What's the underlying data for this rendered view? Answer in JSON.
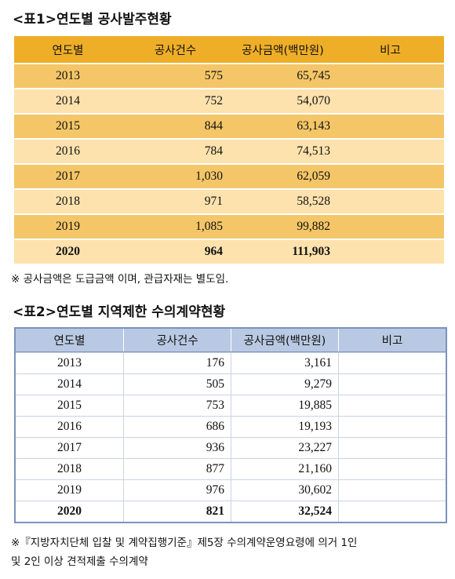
{
  "tables": [
    {
      "title": "<표1>연도별 공사발주현황",
      "header": [
        "연도별",
        "공사건수",
        "공사금액(백만원)",
        "비고"
      ],
      "rows": [
        [
          "2013",
          "575",
          "65,745"
        ],
        [
          "2014",
          "752",
          "54,070"
        ],
        [
          "2015",
          "844",
          "63,143"
        ],
        [
          "2016",
          "784",
          "74,513"
        ],
        [
          "2017",
          "1,030",
          "62,059"
        ],
        [
          "2018",
          "971",
          "58,528"
        ],
        [
          "2019",
          "1,085",
          "99,882"
        ],
        [
          "2020",
          "964",
          "111,903"
        ]
      ],
      "note": [
        "※ 공사금액은 도급금액 이며, 관급자재는 별도임."
      ]
    },
    {
      "title": "<표2>연도별 지역제한 수의계약현황",
      "header": [
        "연도별",
        "공사건수",
        "공사금액(백만원)",
        "비고"
      ],
      "rows": [
        [
          "2013",
          "176",
          "3,161"
        ],
        [
          "2014",
          "505",
          "9,279"
        ],
        [
          "2015",
          "753",
          "19,885"
        ],
        [
          "2016",
          "686",
          "19,193"
        ],
        [
          "2017",
          "936",
          "23,227"
        ],
        [
          "2018",
          "877",
          "21,160"
        ],
        [
          "2019",
          "976",
          "30,602"
        ],
        [
          "2020",
          "821",
          "32,524"
        ]
      ],
      "note": [
        "※『지방자치단체 입찰 및 계약집행기준』제5장 수의계약운영요령에 의거 1인",
        "및 2인 이상 견적제출 수의계약"
      ]
    }
  ]
}
